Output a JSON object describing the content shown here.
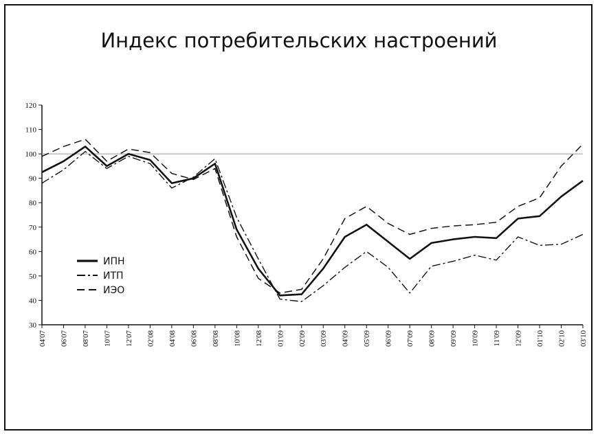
{
  "chart_data": {
    "type": "line",
    "title": "Индекс потребительских настроений",
    "xlabel": "",
    "ylabel": "",
    "ylim": [
      30,
      120
    ],
    "yticks": [
      30,
      40,
      50,
      60,
      70,
      80,
      90,
      100,
      110,
      120
    ],
    "reference_line": 100,
    "legend_position": "left",
    "categories": [
      "04'07",
      "06'07",
      "08'07",
      "10'07",
      "12'07",
      "02'08",
      "04'08",
      "06'08",
      "08'08",
      "10'08",
      "12'08",
      "01'09",
      "02'09",
      "03'09",
      "04'09",
      "05'09",
      "06'09",
      "07'09",
      "08'09",
      "09'09",
      "10'09",
      "11'09",
      "12'09",
      "01'10",
      "02'10",
      "03'10"
    ],
    "series": [
      {
        "name": "ИПН",
        "style": "solid",
        "values": [
          92.5,
          97,
          103,
          95,
          100,
          97.5,
          88,
          90,
          96,
          69,
          53,
          42,
          42.5,
          53,
          66,
          71,
          64,
          57,
          63.5,
          65,
          66,
          65.5,
          73.5,
          74.5,
          82.5,
          89
        ]
      },
      {
        "name": "ИТП",
        "style": "dashdot",
        "values": [
          88,
          93.5,
          101,
          94,
          99,
          96,
          86,
          90.5,
          98,
          74,
          57,
          40.5,
          39.5,
          46,
          53.5,
          60,
          53.5,
          43,
          54,
          56,
          58.5,
          56.5,
          66,
          62.5,
          63,
          67
        ]
      },
      {
        "name": "ИЭО",
        "style": "dashed",
        "values": [
          99,
          103,
          106,
          97,
          102,
          100.5,
          92,
          89.5,
          94,
          66,
          49,
          43,
          44.5,
          57,
          73.5,
          78.5,
          71.5,
          67,
          69.5,
          70.5,
          71,
          72,
          78.5,
          82,
          95,
          104
        ]
      }
    ],
    "colors": {
      "line": "#111111",
      "reference": "#999999"
    }
  }
}
